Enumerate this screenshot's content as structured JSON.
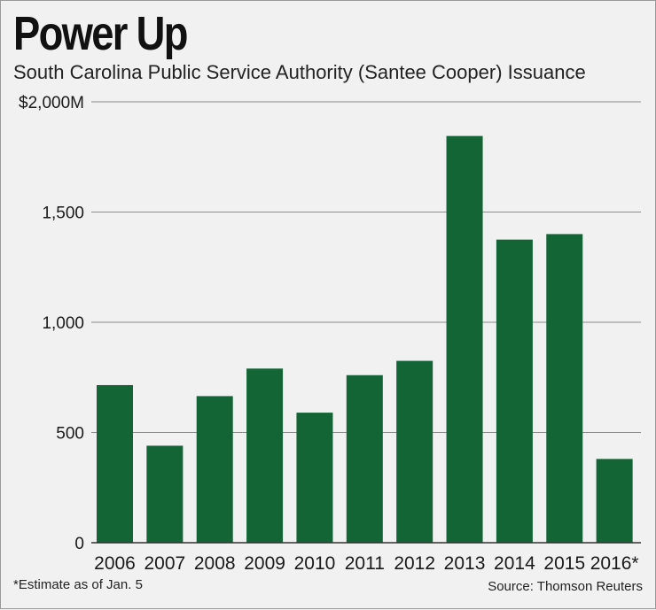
{
  "header": {
    "title": "Power Up",
    "subtitle": "South Carolina Public Service Authority (Santee Cooper) Issuance"
  },
  "footer": {
    "footnote": "*Estimate as of Jan. 5",
    "source": "Source: Thomson Reuters"
  },
  "colors": {
    "bar": "#136535",
    "grid": "#8c8c8c",
    "axis": "#333333"
  },
  "chart_data": {
    "type": "bar",
    "title": "Power Up",
    "subtitle": "South Carolina Public Service Authority (Santee Cooper) Issuance",
    "xlabel": "",
    "ylabel": "",
    "unit": "$M",
    "ylim": [
      0,
      2000
    ],
    "yticks": [
      0,
      500,
      1000,
      1500,
      2000
    ],
    "ytick_labels": [
      "0",
      "500",
      "1,000",
      "1,500",
      "$2,000M"
    ],
    "grid": true,
    "categories": [
      "2006",
      "2007",
      "2008",
      "2009",
      "2010",
      "2011",
      "2012",
      "2013",
      "2014",
      "2015",
      "2016*"
    ],
    "values": [
      715,
      440,
      665,
      790,
      590,
      760,
      825,
      1845,
      1375,
      1400,
      380
    ]
  }
}
